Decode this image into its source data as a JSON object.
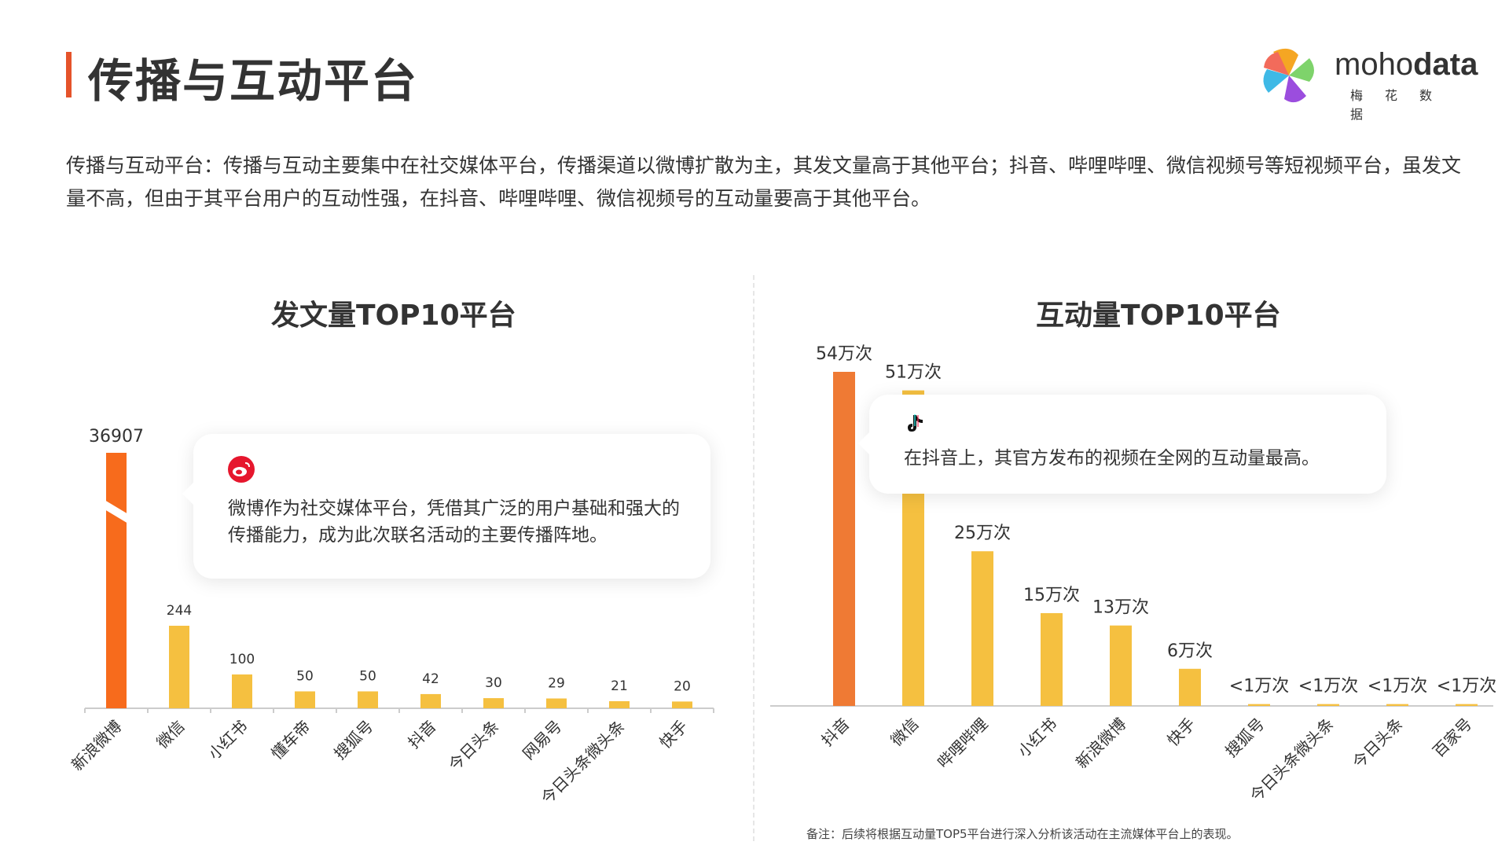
{
  "header": {
    "title": "传播与互动平台",
    "logo_brand_light": "moho",
    "logo_brand_bold": "data",
    "logo_sub": "梅花数据"
  },
  "summary": "传播与互动平台：传播与互动主要集中在社交媒体平台，传播渠道以微博扩散为主，其发文量高于其他平台；抖音、哔哩哔哩、微信视频号等短视频平台，虽发文量不高，但由于其平台用户的互动性强，在抖音、哔哩哔哩、微信视频号的互动量要高于其他平台。",
  "left_callout": {
    "icon": "weibo-icon",
    "text": "微博作为社交媒体平台，凭借其广泛的用户基础和强大的传播能力，成为此次联名活动的主要传播阵地。"
  },
  "right_callout": {
    "icon": "douyin-icon",
    "text": "在抖音上，其官方发布的视频在全网的互动量最高。"
  },
  "note": "备注：后续将根据互动量TOP5平台进行深入分析该活动在主流媒体平台上的表现。",
  "colors": {
    "accent": "#e5532a",
    "bar_top": "#f76b1c",
    "bar_other": "#f5c040",
    "axis": "#cccccc"
  },
  "chart_data": [
    {
      "type": "bar",
      "title": "发文量TOP10平台",
      "broken_axis": true,
      "categories": [
        "新浪微博",
        "微信",
        "小红书",
        "懂车帝",
        "搜狐号",
        "抖音",
        "今日头条",
        "网易号",
        "今日头条微头条",
        "快手"
      ],
      "values": [
        36907,
        244,
        100,
        50,
        50,
        42,
        30,
        29,
        21,
        20
      ],
      "labels": [
        "36907",
        "244",
        "100",
        "50",
        "50",
        "42",
        "30",
        "29",
        "21",
        "20"
      ]
    },
    {
      "type": "bar",
      "title": "互动量TOP10平台",
      "categories": [
        "抖音",
        "微信",
        "哔哩哔哩",
        "小红书",
        "新浪微博",
        "快手",
        "搜狐号",
        "今日头条微头条",
        "今日头条",
        "百家号"
      ],
      "values": [
        54,
        51,
        25,
        15,
        13,
        6,
        0.3,
        0.3,
        0.3,
        0.3
      ],
      "unit": "万次",
      "labels": [
        "54万次",
        "51万次",
        "25万次",
        "15万次",
        "13万次",
        "6万次",
        "<1万次",
        "<1万次",
        "<1万次",
        "<1万次"
      ]
    }
  ]
}
